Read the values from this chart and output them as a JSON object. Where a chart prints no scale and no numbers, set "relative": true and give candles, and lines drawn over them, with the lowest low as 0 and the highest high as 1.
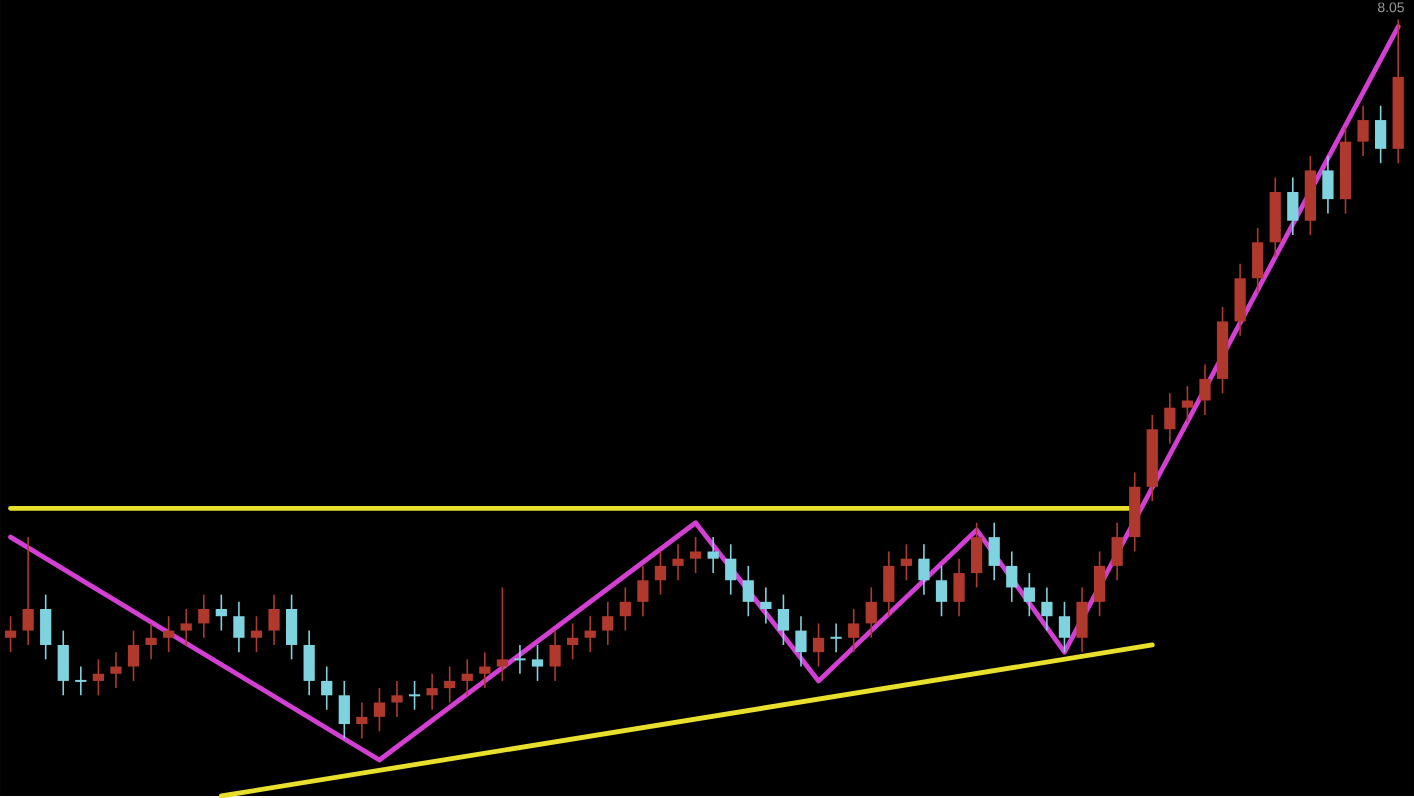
{
  "chart_data": {
    "type": "candlestick",
    "relative": true,
    "categories": [
      null,
      null,
      null,
      null,
      null,
      null,
      null,
      null,
      null,
      null,
      null,
      null,
      null,
      null,
      null,
      null,
      null,
      null,
      null,
      null,
      null,
      null,
      null,
      null,
      null,
      null,
      null,
      null,
      null,
      null,
      null,
      null,
      null,
      null,
      null,
      null,
      null,
      null,
      null,
      null,
      null,
      null,
      null,
      null,
      null,
      null,
      null,
      null,
      null,
      null,
      null,
      null,
      null,
      null,
      null,
      null,
      null,
      null,
      null,
      null,
      null,
      null,
      null,
      null,
      null,
      null,
      null,
      null,
      null,
      null,
      null,
      null,
      null,
      null,
      null,
      null,
      null,
      null,
      null,
      null
    ],
    "ohlc": [
      [
        0.14,
        0.17,
        0.12,
        0.15
      ],
      [
        0.15,
        0.28,
        0.13,
        0.18
      ],
      [
        0.18,
        0.2,
        0.11,
        0.13
      ],
      [
        0.13,
        0.15,
        0.06,
        0.08
      ],
      [
        0.08,
        0.1,
        0.06,
        0.08
      ],
      [
        0.08,
        0.11,
        0.06,
        0.09
      ],
      [
        0.09,
        0.12,
        0.07,
        0.1
      ],
      [
        0.1,
        0.15,
        0.08,
        0.13
      ],
      [
        0.13,
        0.16,
        0.11,
        0.14
      ],
      [
        0.14,
        0.17,
        0.12,
        0.15
      ],
      [
        0.15,
        0.18,
        0.13,
        0.16
      ],
      [
        0.16,
        0.2,
        0.14,
        0.18
      ],
      [
        0.18,
        0.2,
        0.15,
        0.17
      ],
      [
        0.17,
        0.19,
        0.12,
        0.14
      ],
      [
        0.14,
        0.17,
        0.12,
        0.15
      ],
      [
        0.15,
        0.2,
        0.13,
        0.18
      ],
      [
        0.18,
        0.2,
        0.11,
        0.13
      ],
      [
        0.13,
        0.15,
        0.06,
        0.08
      ],
      [
        0.08,
        0.1,
        0.04,
        0.06
      ],
      [
        0.06,
        0.08,
        0.0,
        0.02
      ],
      [
        0.02,
        0.05,
        0.0,
        0.03
      ],
      [
        0.03,
        0.07,
        0.01,
        0.05
      ],
      [
        0.05,
        0.08,
        0.03,
        0.06
      ],
      [
        0.06,
        0.08,
        0.04,
        0.06
      ],
      [
        0.06,
        0.09,
        0.04,
        0.07
      ],
      [
        0.07,
        0.1,
        0.05,
        0.08
      ],
      [
        0.08,
        0.11,
        0.06,
        0.09
      ],
      [
        0.09,
        0.12,
        0.07,
        0.1
      ],
      [
        0.1,
        0.21,
        0.08,
        0.11
      ],
      [
        0.11,
        0.13,
        0.09,
        0.11
      ],
      [
        0.11,
        0.13,
        0.08,
        0.1
      ],
      [
        0.1,
        0.15,
        0.08,
        0.13
      ],
      [
        0.13,
        0.16,
        0.11,
        0.14
      ],
      [
        0.14,
        0.17,
        0.12,
        0.15
      ],
      [
        0.15,
        0.19,
        0.13,
        0.17
      ],
      [
        0.17,
        0.21,
        0.15,
        0.19
      ],
      [
        0.19,
        0.24,
        0.17,
        0.22
      ],
      [
        0.22,
        0.26,
        0.2,
        0.24
      ],
      [
        0.24,
        0.27,
        0.22,
        0.25
      ],
      [
        0.25,
        0.28,
        0.23,
        0.26
      ],
      [
        0.26,
        0.28,
        0.23,
        0.25
      ],
      [
        0.25,
        0.27,
        0.2,
        0.22
      ],
      [
        0.22,
        0.24,
        0.17,
        0.19
      ],
      [
        0.19,
        0.21,
        0.16,
        0.18
      ],
      [
        0.18,
        0.2,
        0.13,
        0.15
      ],
      [
        0.15,
        0.17,
        0.1,
        0.12
      ],
      [
        0.12,
        0.16,
        0.1,
        0.14
      ],
      [
        0.14,
        0.16,
        0.12,
        0.14
      ],
      [
        0.14,
        0.18,
        0.12,
        0.16
      ],
      [
        0.16,
        0.21,
        0.14,
        0.19
      ],
      [
        0.19,
        0.26,
        0.17,
        0.24
      ],
      [
        0.24,
        0.27,
        0.22,
        0.25
      ],
      [
        0.25,
        0.27,
        0.2,
        0.22
      ],
      [
        0.22,
        0.24,
        0.17,
        0.19
      ],
      [
        0.19,
        0.25,
        0.17,
        0.23
      ],
      [
        0.23,
        0.3,
        0.21,
        0.28
      ],
      [
        0.28,
        0.3,
        0.22,
        0.24
      ],
      [
        0.24,
        0.26,
        0.19,
        0.21
      ],
      [
        0.21,
        0.23,
        0.17,
        0.19
      ],
      [
        0.19,
        0.21,
        0.15,
        0.17
      ],
      [
        0.17,
        0.19,
        0.12,
        0.14
      ],
      [
        0.14,
        0.21,
        0.12,
        0.19
      ],
      [
        0.19,
        0.26,
        0.17,
        0.24
      ],
      [
        0.24,
        0.3,
        0.22,
        0.28
      ],
      [
        0.28,
        0.37,
        0.26,
        0.35
      ],
      [
        0.35,
        0.45,
        0.33,
        0.43
      ],
      [
        0.43,
        0.48,
        0.41,
        0.46
      ],
      [
        0.46,
        0.49,
        0.44,
        0.47
      ],
      [
        0.47,
        0.52,
        0.45,
        0.5
      ],
      [
        0.5,
        0.6,
        0.48,
        0.58
      ],
      [
        0.58,
        0.66,
        0.56,
        0.64
      ],
      [
        0.64,
        0.71,
        0.62,
        0.69
      ],
      [
        0.69,
        0.78,
        0.67,
        0.76
      ],
      [
        0.76,
        0.78,
        0.7,
        0.72
      ],
      [
        0.72,
        0.81,
        0.7,
        0.79
      ],
      [
        0.79,
        0.81,
        0.73,
        0.75
      ],
      [
        0.75,
        0.85,
        0.73,
        0.83
      ],
      [
        0.83,
        0.88,
        0.81,
        0.86
      ],
      [
        0.86,
        0.88,
        0.8,
        0.82
      ],
      [
        0.82,
        1.0,
        0.8,
        0.92
      ]
    ],
    "colors": [
      "#b0392e",
      "#b0392e",
      "#7fd3df",
      "#7fd3df",
      "#7fd3df",
      "#b0392e",
      "#b0392e",
      "#b0392e",
      "#b0392e",
      "#b0392e",
      "#b0392e",
      "#b0392e",
      "#7fd3df",
      "#7fd3df",
      "#b0392e",
      "#b0392e",
      "#7fd3df",
      "#7fd3df",
      "#7fd3df",
      "#7fd3df",
      "#b0392e",
      "#b0392e",
      "#b0392e",
      "#7fd3df",
      "#b0392e",
      "#b0392e",
      "#b0392e",
      "#b0392e",
      "#b0392e",
      "#7fd3df",
      "#7fd3df",
      "#b0392e",
      "#b0392e",
      "#b0392e",
      "#b0392e",
      "#b0392e",
      "#b0392e",
      "#b0392e",
      "#b0392e",
      "#b0392e",
      "#7fd3df",
      "#7fd3df",
      "#7fd3df",
      "#7fd3df",
      "#7fd3df",
      "#7fd3df",
      "#b0392e",
      "#7fd3df",
      "#b0392e",
      "#b0392e",
      "#b0392e",
      "#b0392e",
      "#7fd3df",
      "#7fd3df",
      "#b0392e",
      "#b0392e",
      "#7fd3df",
      "#7fd3df",
      "#7fd3df",
      "#7fd3df",
      "#7fd3df",
      "#b0392e",
      "#b0392e",
      "#b0392e",
      "#b0392e",
      "#b0392e",
      "#b0392e",
      "#b0392e",
      "#b0392e",
      "#b0392e",
      "#b0392e",
      "#b0392e",
      "#b0392e",
      "#7fd3df",
      "#b0392e",
      "#7fd3df",
      "#b0392e",
      "#b0392e",
      "#7fd3df",
      "#b0392e"
    ],
    "series": [
      {
        "type": "line",
        "color": "#e8e02c",
        "values": [
          0.32,
          null,
          null,
          null,
          null,
          null,
          null,
          null,
          null,
          null,
          null,
          null,
          null,
          null,
          null,
          null,
          null,
          null,
          null,
          null,
          null,
          null,
          null,
          null,
          null,
          null,
          null,
          null,
          null,
          null,
          null,
          null,
          null,
          null,
          null,
          null,
          null,
          null,
          null,
          null,
          null,
          null,
          null,
          null,
          null,
          null,
          null,
          null,
          null,
          null,
          null,
          null,
          null,
          null,
          null,
          null,
          null,
          null,
          null,
          null,
          null,
          null,
          null,
          null,
          0.32,
          null,
          null,
          null,
          null,
          null,
          null,
          null,
          null,
          null,
          null,
          null,
          null,
          null,
          null,
          null
        ]
      },
      {
        "type": "line",
        "color": "#e8e02c",
        "values": [
          null,
          null,
          null,
          null,
          null,
          null,
          null,
          null,
          null,
          null,
          null,
          null,
          -0.08,
          null,
          null,
          null,
          null,
          null,
          null,
          null,
          null,
          null,
          null,
          null,
          null,
          null,
          null,
          null,
          null,
          null,
          null,
          null,
          null,
          null,
          null,
          null,
          null,
          null,
          null,
          null,
          null,
          null,
          null,
          null,
          null,
          null,
          null,
          null,
          null,
          null,
          null,
          null,
          null,
          null,
          null,
          null,
          null,
          null,
          null,
          null,
          null,
          null,
          null,
          null,
          null,
          0.13,
          null,
          null,
          null,
          null,
          null,
          null,
          null,
          null,
          null,
          null,
          null,
          null,
          null,
          null
        ]
      },
      {
        "type": "line",
        "color": "#d23fd2",
        "values": [
          0.28,
          null,
          null,
          null,
          null,
          null,
          null,
          null,
          null,
          null,
          null,
          null,
          null,
          null,
          null,
          null,
          null,
          null,
          null,
          null,
          null,
          -0.03,
          null,
          null,
          null,
          null,
          null,
          null,
          null,
          null,
          null,
          null,
          null,
          null,
          null,
          null,
          null,
          null,
          null,
          0.3,
          null,
          null,
          null,
          null,
          null,
          null,
          0.08,
          null,
          null,
          null,
          null,
          null,
          null,
          null,
          null,
          0.29,
          null,
          null,
          null,
          null,
          0.12,
          null,
          null,
          null,
          null,
          null,
          null,
          null,
          null,
          null,
          null,
          null,
          null,
          null,
          null,
          null,
          null,
          null,
          null,
          0.99
        ]
      }
    ],
    "annotations": [
      "8.05"
    ]
  }
}
